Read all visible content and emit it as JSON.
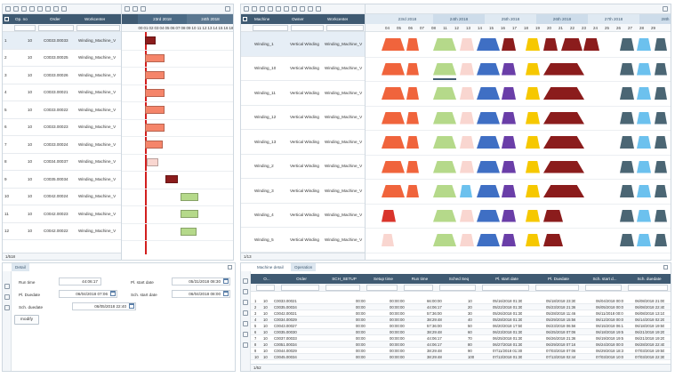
{
  "left_grid": {
    "headers": [
      "Op. no",
      "Order",
      "Workcenter"
    ],
    "rows": [
      {
        "idx": "1",
        "op": "10",
        "order": "C0033.00033",
        "wc": "Winding_Machine_V"
      },
      {
        "idx": "2",
        "op": "10",
        "order": "C0033.00025",
        "wc": "Winding_Machine_V"
      },
      {
        "idx": "3",
        "op": "10",
        "order": "C0033.00026",
        "wc": "Winding_Machine_V"
      },
      {
        "idx": "4",
        "op": "10",
        "order": "C0033.00021",
        "wc": "Winding_Machine_V"
      },
      {
        "idx": "5",
        "op": "10",
        "order": "C0033.00022",
        "wc": "Winding_Machine_V"
      },
      {
        "idx": "6",
        "op": "10",
        "order": "C0033.00023",
        "wc": "Winding_Machine_V"
      },
      {
        "idx": "7",
        "op": "10",
        "order": "C0033.00024",
        "wc": "Winding_Machine_V"
      },
      {
        "idx": "8",
        "op": "10",
        "order": "C0034.00037",
        "wc": "Winding_Machine_V"
      },
      {
        "idx": "9",
        "op": "10",
        "order": "C0035.00034",
        "wc": "Winding_Machine_V"
      },
      {
        "idx": "10",
        "op": "10",
        "order": "C0042.00024",
        "wc": "Winding_Machine_V"
      },
      {
        "idx": "11",
        "op": "10",
        "order": "C0042.00023",
        "wc": "Winding_Machine_V"
      },
      {
        "idx": "12",
        "op": "10",
        "order": "C0042.00022",
        "wc": "Winding_Machine_V"
      }
    ],
    "footer": "1/518"
  },
  "left_timeline": {
    "dates": [
      "23rd 2018",
      "24th 2018"
    ],
    "hours": [
      "00",
      "01",
      "02",
      "03",
      "04",
      "05",
      "06",
      "07",
      "08",
      "09",
      "10",
      "11",
      "12",
      "13",
      "14",
      "15",
      "16",
      "18"
    ]
  },
  "right_grid": {
    "headers": [
      "Machine",
      "Owner",
      "Workcenter"
    ],
    "rows": [
      {
        "machine": "Winding_1",
        "owner": "Vertical Winding",
        "wc": "Winding_Machine_V"
      },
      {
        "machine": "Winding_10",
        "owner": "Vertical Winding",
        "wc": "Winding_Machine_V"
      },
      {
        "machine": "Winding_11",
        "owner": "Vertical Winding",
        "wc": "Winding_Machine_V"
      },
      {
        "machine": "Winding_12",
        "owner": "Vertical Winding",
        "wc": "Winding_Machine_V"
      },
      {
        "machine": "Winding_13",
        "owner": "Vertical Winding",
        "wc": "Winding_Machine_V"
      },
      {
        "machine": "Winding_2",
        "owner": "Vertical Winding",
        "wc": "Winding_Machine_V"
      },
      {
        "machine": "Winding_3",
        "owner": "Vertical Winding",
        "wc": "Winding_Machine_V"
      },
      {
        "machine": "Winding_4",
        "owner": "Vertical Winding",
        "wc": "Winding_Machine_V"
      },
      {
        "machine": "Winding_5",
        "owner": "Vertical Winding",
        "wc": "Winding_Machine_V"
      }
    ],
    "footer": "1/13"
  },
  "right_timeline": {
    "dates": [
      "23rd 2018",
      "24th 2018",
      "25th 2018",
      "26th 2018",
      "27th 2018",
      "28th"
    ],
    "hours": [
      "04",
      "05",
      "06",
      "07",
      "08",
      "11",
      "12",
      "13",
      "14",
      "15",
      "16",
      "17",
      "18",
      "19",
      "20",
      "21",
      "22",
      "23",
      "24",
      "25",
      "26",
      "27",
      "28",
      "29"
    ]
  },
  "detail": {
    "tab": "Detail",
    "run_time_label": "Run time",
    "run_time": "44:06:17",
    "pl_duedate_label": "Pl. Duedate",
    "pl_duedate": "06/04/2018 07:06",
    "sch_duedate_label": "Sch. duedate",
    "sch_duedate": "06/05/2018 22:40",
    "pl_start_label": "Pl. start date",
    "pl_start": "05/31/2018 08:30",
    "sch_start_label": "Sch. start date",
    "sch_start": "06/04/2018 08:00",
    "modify": "modify"
  },
  "ops": {
    "tabs": [
      "Machine detail",
      "Operation"
    ],
    "headers": [
      "O...",
      "Order",
      "SCH_SETUP",
      "Setup time",
      "Run time",
      "Sched Seq",
      "Pl. start date",
      "Pl. Duedate",
      "Sch. start d...",
      "Sch. duedate"
    ],
    "rows": [
      [
        "1",
        "10",
        "C0033.00021",
        "00:00",
        "00:00:00",
        "66:00:00",
        "10",
        "05/16/2018 01:30",
        "05/18/2018 23:30",
        "06/04/2018 00:0",
        "06/08/2018 21:00"
      ],
      [
        "2",
        "10",
        "C0035.00034",
        "00:00",
        "00:00:00",
        "44:06:17",
        "20",
        "05/22/2018 01:30",
        "05/23/2018 21:36",
        "06/05/2018 00:0",
        "06/08/2018 22:40"
      ],
      [
        "3",
        "10",
        "C0042.00021",
        "00:00",
        "00:00:00",
        "57:36:00",
        "30",
        "05/26/2018 01:30",
        "05/28/2018 11:46",
        "06/11/2018 00:0",
        "06/08/2018 13:10"
      ],
      [
        "4",
        "10",
        "C0034.00029",
        "00:00",
        "00:00:00",
        "38:29:48",
        "40",
        "05/28/2018 01:30",
        "05/29/2018 15:56",
        "06/12/2018 00:0",
        "06/14/2018 02:20"
      ],
      [
        "5",
        "10",
        "C0043.00027",
        "00:00",
        "00:00:00",
        "57:36:00",
        "50",
        "06/20/2018 17:50",
        "06/23/2018 06:56",
        "06/15/2018 06:1",
        "06/18/2018 19:50"
      ],
      [
        "6",
        "10",
        "C0035.00030",
        "00:00",
        "00:00:00",
        "38:29:48",
        "60",
        "06/23/2018 01:30",
        "06/25/2018 07:06",
        "06/18/2018 19:5",
        "06/21/2018 19:20"
      ],
      [
        "7",
        "10",
        "C0037.00033",
        "00:00",
        "00:00:00",
        "44:06:17",
        "70",
        "06/25/2018 01:30",
        "06/26/2018 21:36",
        "06/19/2018 19:5",
        "06/21/2018 19:20"
      ],
      [
        "8",
        "10",
        "C0051.00034",
        "00:00",
        "00:00:00",
        "44:06:17",
        "80",
        "06/27/2018 01:30",
        "06/29/2018 07:16",
        "06/24/2018 00:0",
        "06/28/2018 22:40"
      ],
      [
        "9",
        "10",
        "C0044.00029",
        "00:00",
        "00:00:00",
        "38:29:48",
        "90",
        "07/11/2018 01:30",
        "07/03/2018 07:06",
        "06/29/2018 18:3",
        "07/03/2018 19:50"
      ],
      [
        "10",
        "10",
        "C0045.00034",
        "00:00",
        "00:00:00",
        "38:29:48",
        "100",
        "07/13/2018 01:30",
        "07/13/2018 02:44",
        "07/03/2018 10:0",
        "07/03/2018 22:30"
      ]
    ],
    "footer": "1/52"
  },
  "colors": {
    "header": "#3f5a72",
    "coral": "#f0643c",
    "salmon": "#f5856a",
    "pink": "#f9d6d0",
    "green": "#b5d98a",
    "blue": "#3f6fc4",
    "lightblue": "#6cc1ee",
    "purple": "#6a3ea8",
    "yellow": "#f6c800",
    "darkred": "#8b1c1c",
    "slate": "#4b6674",
    "red": "#d9342b"
  }
}
